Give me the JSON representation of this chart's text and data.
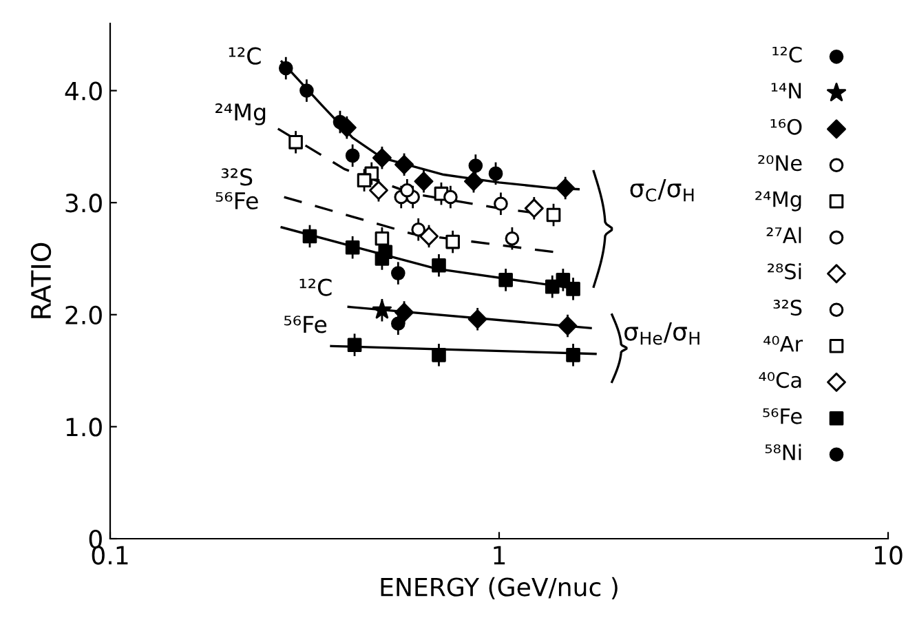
{
  "chart_data": {
    "type": "scatter",
    "xlabel": "ENERGY (GeV/nuc )",
    "ylabel": "RATIO",
    "log": "x",
    "xlim": [
      0.1,
      10
    ],
    "xticks": [
      0.1,
      1,
      10
    ],
    "ylim": [
      0,
      4.6
    ],
    "yticks": [
      0,
      {
        "value": 1,
        "label": "1.0"
      },
      {
        "value": 2,
        "label": "2.0"
      },
      {
        "value": 3,
        "label": "3.0"
      },
      {
        "value": 4,
        "label": "4.0"
      }
    ],
    "grid": false,
    "legend": "right",
    "series": [
      {
        "name": "¹²C",
        "color": "#000000",
        "marker": "circle",
        "x": [
          0.283,
          0.32,
          0.39,
          0.42,
          0.87,
          0.98,
          0.55
        ],
        "values": [
          4.2,
          4.0,
          3.72,
          3.42,
          3.33,
          3.26,
          1.92
        ],
        "errors": [
          0.1,
          0.1,
          0.1,
          0.1,
          0.1,
          0.1,
          0.1
        ]
      },
      {
        "name": "¹⁴N",
        "color": "#000000",
        "marker": "star",
        "x": [
          0.5
        ],
        "values": [
          2.04
        ],
        "errors": [
          0.1
        ]
      },
      {
        "name": "¹⁶O",
        "color": "#000000",
        "marker": "diamond",
        "x": [
          0.406,
          0.5,
          0.57,
          0.64,
          0.86,
          1.48,
          0.57,
          0.88,
          1.5
        ],
        "values": [
          3.67,
          3.4,
          3.34,
          3.19,
          3.19,
          3.13,
          2.02,
          1.96,
          1.9
        ],
        "errors": [
          0.1,
          0.1,
          0.1,
          0.1,
          0.1,
          0.1,
          0.1,
          0.1,
          0.1
        ]
      },
      {
        "name": "²⁰Ne",
        "color": "#ffffff",
        "marker": "circle",
        "x": [
          0.56,
          0.6,
          1.01
        ],
        "values": [
          3.05,
          3.05,
          2.99
        ],
        "errors": [
          0.1,
          0.1,
          0.1
        ]
      },
      {
        "name": "²⁴Mg",
        "color": "#ffffff",
        "marker": "square",
        "x": [
          0.3,
          0.47,
          0.45,
          0.71,
          1.38
        ],
        "values": [
          3.54,
          3.26,
          3.2,
          3.08,
          2.89
        ],
        "errors": [
          0.1,
          0.1,
          0.1,
          0.1,
          0.1
        ]
      },
      {
        "name": "²⁷Al",
        "color": "#ffffff",
        "marker": "circle",
        "x": [
          0.58,
          0.75
        ],
        "values": [
          3.11,
          3.05
        ],
        "errors": [
          0.1,
          0.1
        ]
      },
      {
        "name": "²⁸Si",
        "color": "#ffffff",
        "marker": "diamond",
        "x": [
          0.49,
          1.23
        ],
        "values": [
          3.11,
          2.95
        ],
        "errors": [
          0.1,
          0.1
        ]
      },
      {
        "name": "³²S",
        "color": "#ffffff",
        "marker": "circle",
        "x": [
          0.62,
          1.08
        ],
        "values": [
          2.76,
          2.68
        ],
        "errors": [
          0.1,
          0.1
        ]
      },
      {
        "name": "⁴⁰Ar",
        "color": "#ffffff",
        "marker": "square",
        "x": [
          0.5,
          0.76
        ],
        "values": [
          2.68,
          2.65
        ],
        "errors": [
          0.1,
          0.1
        ]
      },
      {
        "name": "⁴⁰Ca",
        "color": "#ffffff",
        "marker": "diamond",
        "x": [
          0.66
        ],
        "values": [
          2.7
        ],
        "errors": [
          0.1
        ]
      },
      {
        "name": "⁵⁶Fe",
        "color": "#000000",
        "marker": "square",
        "x": [
          0.326,
          0.42,
          0.5,
          0.51,
          0.7,
          1.04,
          1.37,
          1.46,
          1.55,
          0.425,
          0.7,
          1.55
        ],
        "values": [
          2.7,
          2.6,
          2.5,
          2.56,
          2.44,
          2.31,
          2.25,
          2.31,
          2.23,
          1.73,
          1.64,
          1.64
        ],
        "errors": [
          0.1,
          0.1,
          0.1,
          0.1,
          0.1,
          0.1,
          0.1,
          0.1,
          0.1,
          0.1,
          0.1,
          0.1
        ]
      },
      {
        "name": "⁵⁸Ni",
        "color": "#000000",
        "marker": "circle",
        "x": [
          0.55
        ],
        "values": [
          2.37
        ],
        "errors": [
          0.1
        ]
      },
      {
        "type": "line",
        "color": "#000000",
        "line_style": "solid",
        "marker": "none",
        "x": [
          0.276,
          0.35,
          0.42,
          0.5,
          0.72,
          1.0,
          1.38,
          1.6
        ],
        "values": [
          4.26,
          3.87,
          3.58,
          3.4,
          3.25,
          3.18,
          3.13,
          3.12
        ]
      },
      {
        "type": "line",
        "color": "#000000",
        "line_style": "dashed",
        "marker": "none",
        "x": [
          0.27,
          0.4,
          0.6,
          1.0,
          1.43
        ],
        "values": [
          3.66,
          3.3,
          3.08,
          2.95,
          2.88
        ]
      },
      {
        "type": "line",
        "color": "#000000",
        "line_style": "dashed",
        "marker": "none",
        "x": [
          0.28,
          0.6,
          1.38
        ],
        "values": [
          3.05,
          2.72,
          2.56
        ]
      },
      {
        "type": "line",
        "color": "#000000",
        "line_style": "solid",
        "marker": "none",
        "x": [
          0.276,
          0.69,
          1.59
        ],
        "values": [
          2.78,
          2.41,
          2.23
        ]
      },
      {
        "type": "line",
        "color": "#000000",
        "line_style": "solid",
        "marker": "none",
        "x": [
          0.41,
          1.72
        ],
        "values": [
          2.07,
          1.88
        ]
      },
      {
        "type": "line",
        "color": "#000000",
        "line_style": "solid",
        "marker": "none",
        "x": [
          0.37,
          1.77
        ],
        "values": [
          1.72,
          1.65
        ]
      }
    ],
    "annotations": [
      "¹²C",
      "²⁴Mg",
      "³²S",
      "⁵⁶Fe",
      "¹²C",
      "⁵⁶Fe",
      "σ$_{C}$/σ$_{H}$",
      "σ$_{He}$/σ$_{H}$"
    ]
  }
}
